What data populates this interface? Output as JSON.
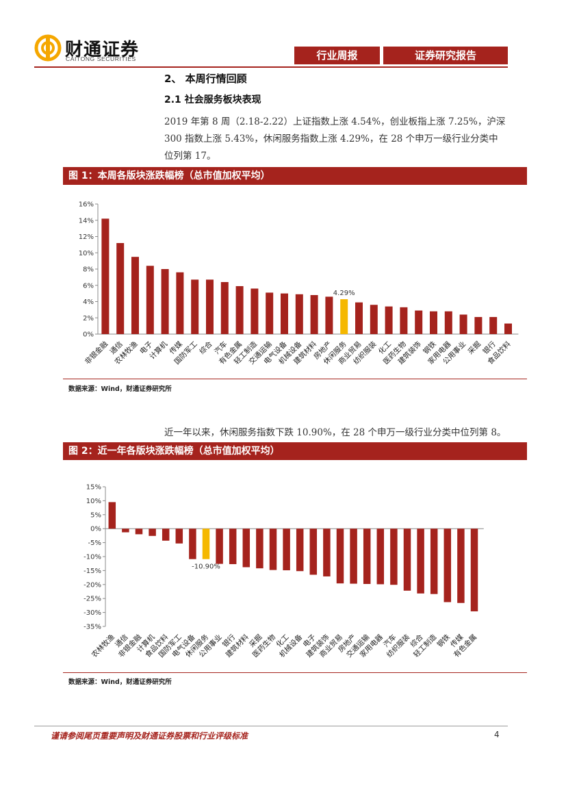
{
  "header": {
    "logo_text": "财通证券",
    "logo_sub": "CAITONG SECURITIES",
    "tab1": "行业周报",
    "tab2": "证券研究报告"
  },
  "section": {
    "h2": "2、 本周行情回顾",
    "h3": "2.1  社会服务板块表现",
    "para1": "2019 年第 8 周（2.18-2.22）上证指数上涨 4.54%，创业板指上涨 7.25%，沪深 300 指数上涨 5.43%，休闲服务指数上涨 4.29%，在 28 个申万一级行业分类中位列第 17。",
    "para2": "近一年以来，休闲服务指数下跌 10.90%，在 28 个申万一级行业分类中位列第 8。"
  },
  "figures": {
    "fig1_title": "图 1：本周各版块涨跌幅榜（总市值加权平均）",
    "fig2_title": "图 2：近一年各版块涨跌幅榜（总市值加权平均）",
    "source1": "数据来源：Wind，财通证券研究所",
    "source2": "数据来源：Wind，财通证券研究所"
  },
  "footer": {
    "disclaimer": "谨请参阅尾页重要声明及财通证券股票和行业评级标准",
    "page": "4"
  },
  "colors": {
    "bar": "#a5231d",
    "highlight": "#f5b800"
  },
  "chart_data": [
    {
      "type": "bar",
      "title": "本周各版块涨跌幅榜（总市值加权平均）",
      "categories": [
        "非银金融",
        "通信",
        "农林牧渔",
        "电子",
        "计算机",
        "传媒",
        "国防军工",
        "综合",
        "汽车",
        "有色金属",
        "轻工制造",
        "交通运输",
        "电气设备",
        "机械设备",
        "建筑材料",
        "房地产",
        "休闲服务",
        "商业贸易",
        "纺织服装",
        "化工",
        "医药生物",
        "建筑装饰",
        "钢铁",
        "家用电器",
        "公用事业",
        "采掘",
        "银行",
        "食品饮料"
      ],
      "values": [
        14.2,
        11.2,
        9.5,
        8.4,
        8.0,
        7.6,
        6.7,
        6.7,
        6.4,
        5.9,
        5.6,
        5.1,
        5.0,
        4.9,
        4.8,
        4.6,
        4.29,
        3.9,
        3.6,
        3.4,
        3.3,
        2.9,
        2.8,
        2.8,
        2.4,
        2.1,
        2.1,
        1.3
      ],
      "highlight_index": 16,
      "highlight_label": "4.29%",
      "ylim": [
        0,
        16
      ],
      "yticks": [
        "0%",
        "2%",
        "4%",
        "6%",
        "8%",
        "10%",
        "12%",
        "14%",
        "16%"
      ]
    },
    {
      "type": "bar",
      "title": "近一年各版块涨跌幅榜（总市值加权平均）",
      "categories": [
        "农林牧渔",
        "通信",
        "非银金融",
        "计算机",
        "食品饮料",
        "国防军工",
        "电气设备",
        "休闲服务",
        "公用事业",
        "银行",
        "建筑材料",
        "采掘",
        "医药生物",
        "化工",
        "机械设备",
        "电子",
        "建筑装饰",
        "商业贸易",
        "房地产",
        "交通运输",
        "家用电器",
        "汽车",
        "纺织服装",
        "综合",
        "轻工制造",
        "钢铁",
        "传媒",
        "有色金属"
      ],
      "values": [
        9.5,
        -1.3,
        -2.0,
        -2.6,
        -4.3,
        -5.3,
        -10.9,
        -10.9,
        -12.6,
        -12.7,
        -13.8,
        -14.2,
        -14.8,
        -14.9,
        -15.2,
        -16.5,
        -17.1,
        -19.6,
        -19.7,
        -19.8,
        -19.9,
        -20.1,
        -22.2,
        -23.2,
        -23.4,
        -26.3,
        -26.6,
        -29.6
      ],
      "highlight_index": 7,
      "highlight_label": "-10.90%",
      "ylim": [
        -35,
        15
      ],
      "yticks": [
        "15%",
        "10%",
        "5%",
        "0%",
        "-5%",
        "-10%",
        "-15%",
        "-20%",
        "-25%",
        "-30%",
        "-35%"
      ]
    }
  ]
}
